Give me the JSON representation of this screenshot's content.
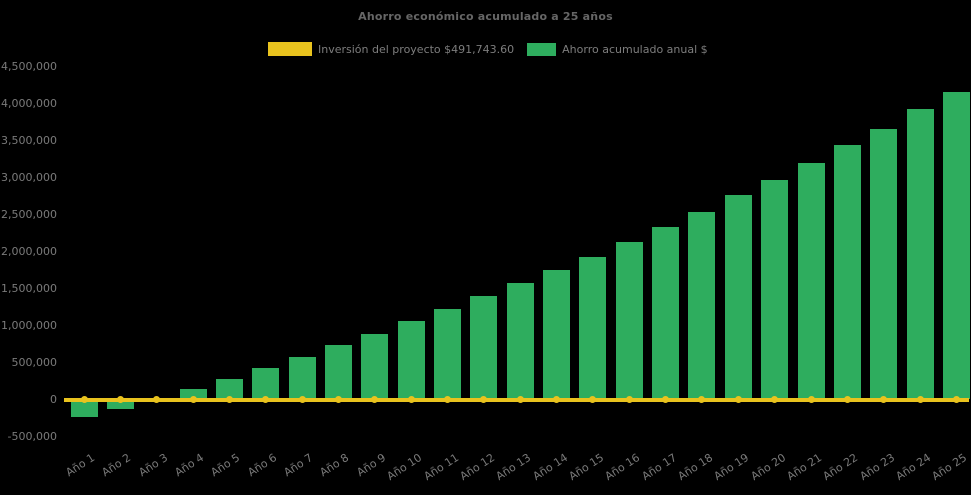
{
  "title": "Ahorro económico acumulado a 25 años",
  "legend": {
    "items": [
      {
        "label": "Inversión del proyecto $491,743.60",
        "color": "#E9C31E",
        "swatch": "line-sample"
      },
      {
        "label": "Ahorro acumulado anual $",
        "color": "#2EAD5E",
        "swatch": "bar-sample"
      }
    ]
  },
  "chart_data": {
    "type": "bar",
    "title": "Ahorro económico acumulado a 25 años",
    "categories": [
      "Año 1",
      "Año 2",
      "Año 3",
      "Año 4",
      "Año 5",
      "Año 6",
      "Año 7",
      "Año 8",
      "Año 9",
      "Año 10",
      "Año 11",
      "Año 12",
      "Año 13",
      "Año 14",
      "Año 15",
      "Año 16",
      "Año 17",
      "Año 18",
      "Año 19",
      "Año 20",
      "Año 21",
      "Año 22",
      "Año 23",
      "Año 24",
      "Año 25"
    ],
    "series": [
      {
        "name": "Ahorro acumulado anual $",
        "type": "bar",
        "color": "#2EAD5E",
        "values": [
          -240000,
          -130000,
          0,
          140000,
          280000,
          420000,
          570000,
          730000,
          890000,
          1060000,
          1220000,
          1400000,
          1580000,
          1750000,
          1930000,
          2130000,
          2330000,
          2540000,
          2760000,
          2970000,
          3200000,
          3440000,
          3660000,
          3930000,
          4160000
        ]
      },
      {
        "name": "Inversión del proyecto $491,743.60",
        "type": "line",
        "color": "#E9C31E",
        "marker": "circle",
        "constant_value": 0
      }
    ],
    "xlabel": "",
    "ylabel": "",
    "ylim": [
      -500000,
      4500000
    ],
    "ytick_step": 500000,
    "ytick_labels": [
      "4,500,000",
      "4,000,000",
      "3,500,000",
      "3,000,000",
      "2,500,000",
      "2,000,000",
      "1,500,000",
      "1,000,000",
      "500,000",
      "0",
      "-500,000"
    ],
    "grid": false,
    "legend_position": "top-center",
    "background": "#000000",
    "text_color": "#7a7a7a"
  }
}
